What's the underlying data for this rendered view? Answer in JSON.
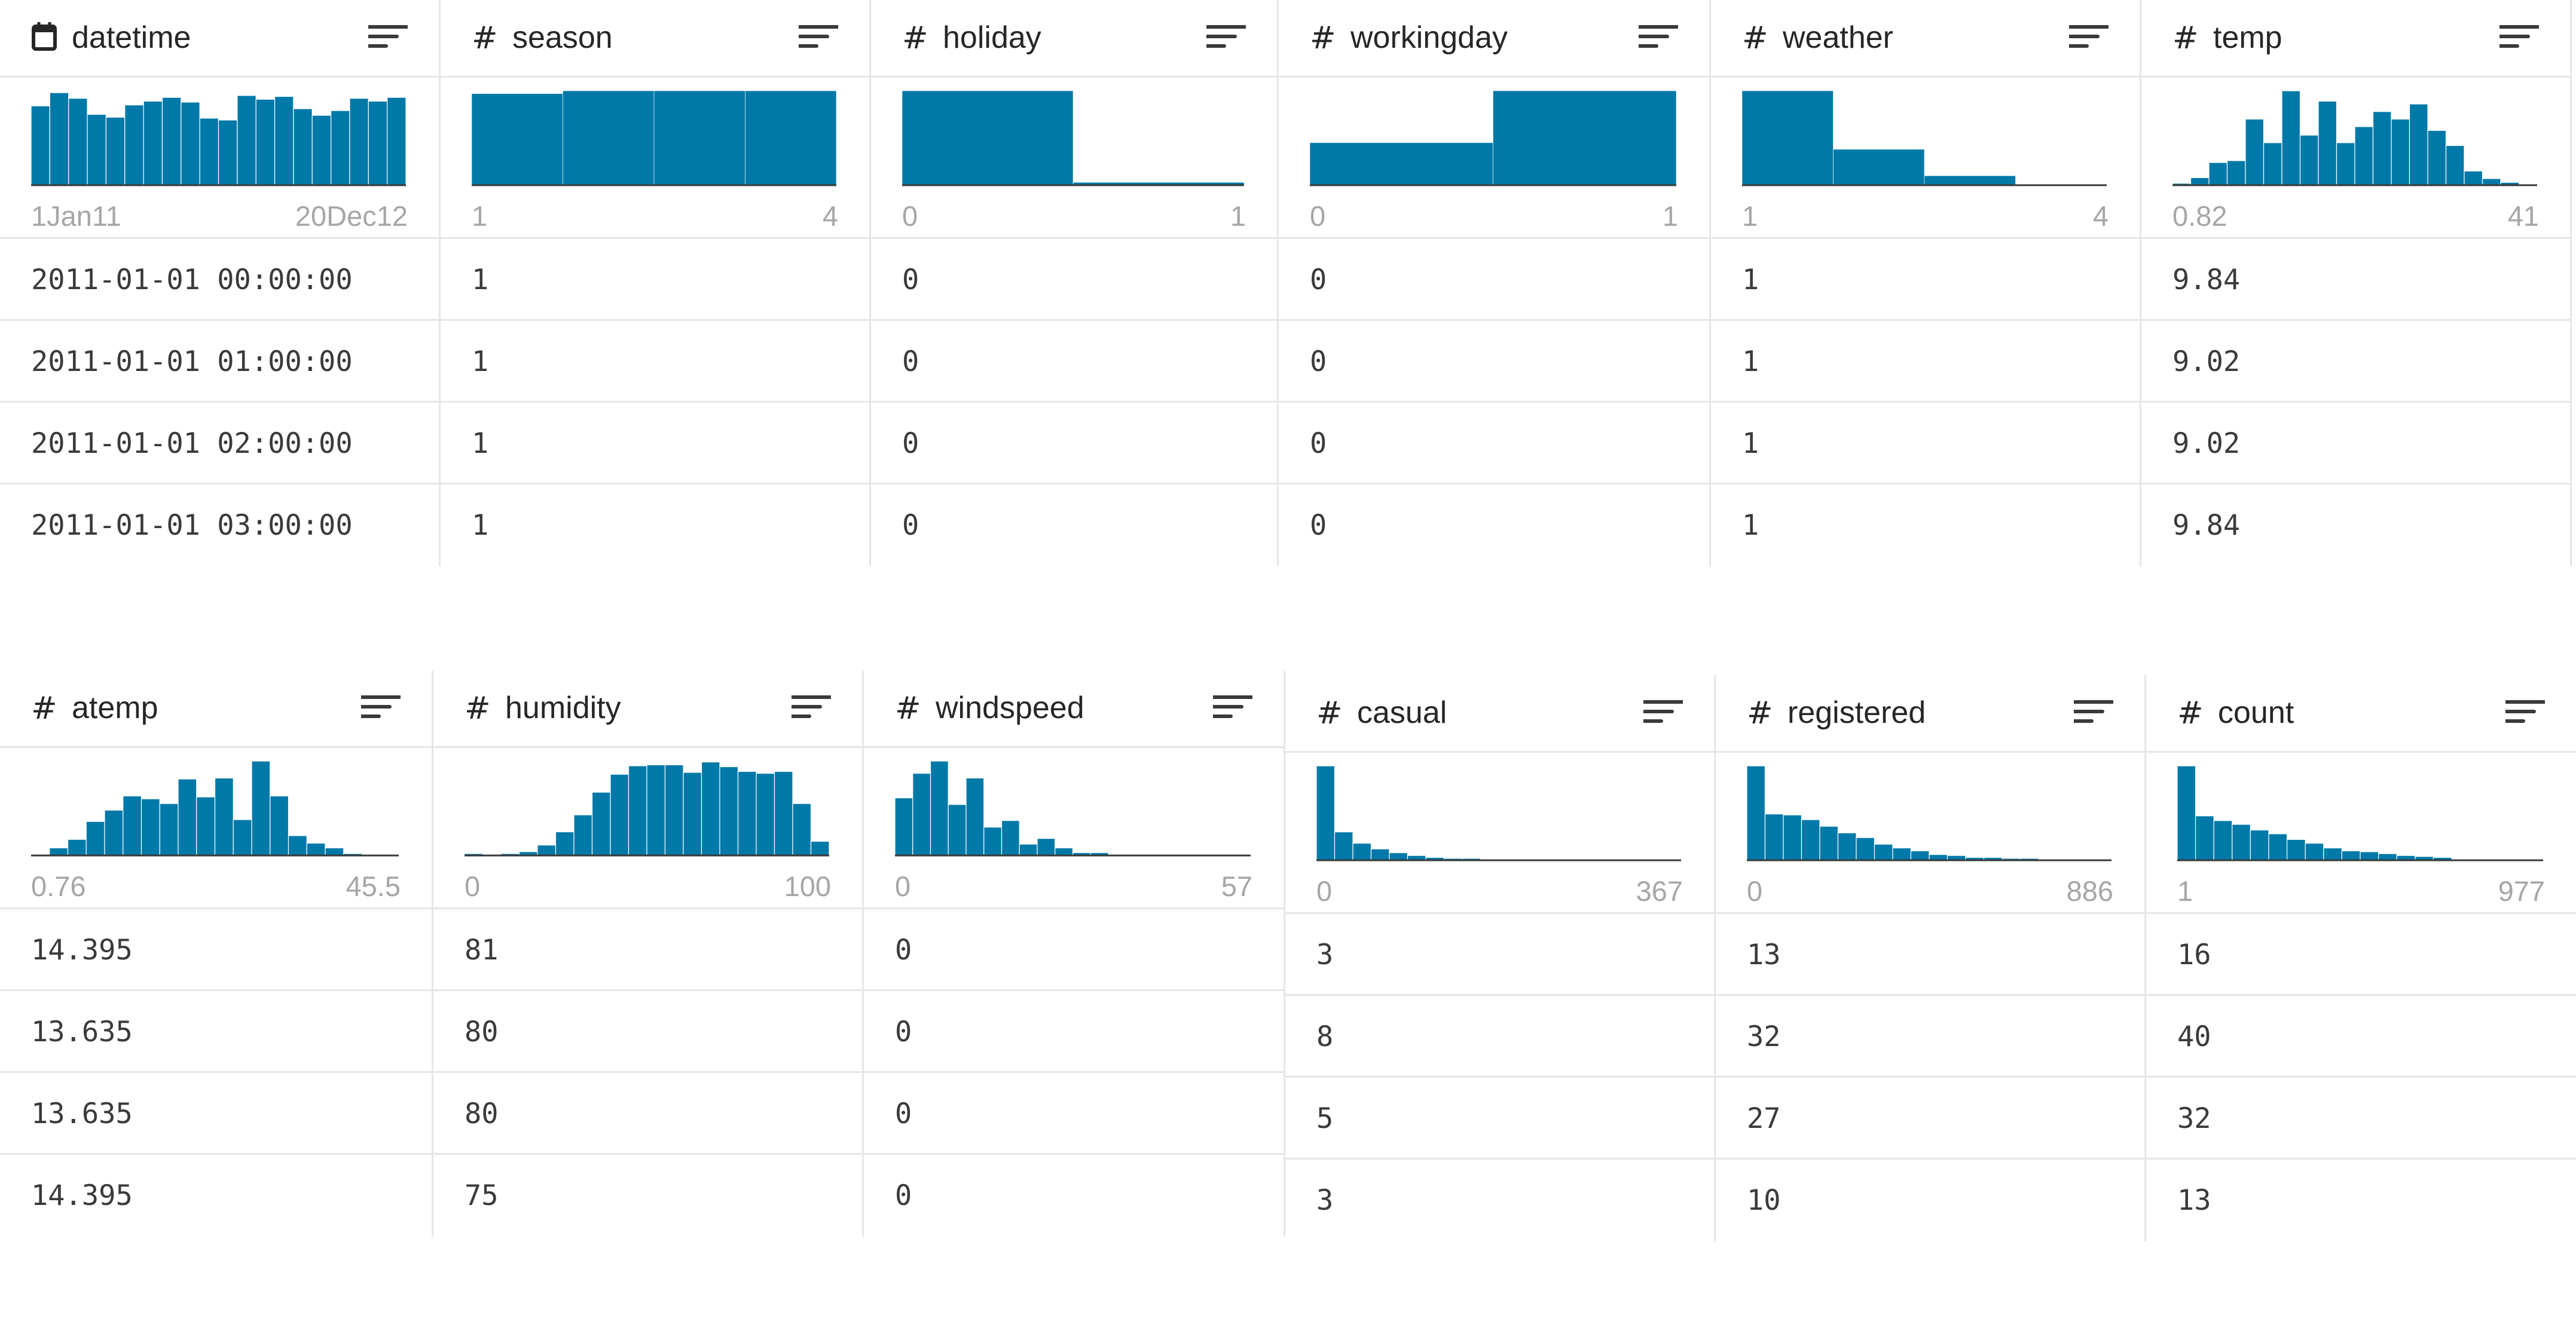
{
  "bar_color": "#0079a8",
  "columns": [
    {
      "name": "datetime",
      "type_icon": "calendar-icon",
      "range_min": "1Jan11",
      "range_max": "20Dec12",
      "values": [
        "2011-01-01 00:00:00",
        "2011-01-01 01:00:00",
        "2011-01-01 02:00:00",
        "2011-01-01 03:00:00"
      ]
    },
    {
      "name": "season",
      "type_icon": "hash-icon",
      "range_min": "1",
      "range_max": "4",
      "values": [
        "1",
        "1",
        "1",
        "1"
      ]
    },
    {
      "name": "holiday",
      "type_icon": "hash-icon",
      "range_min": "0",
      "range_max": "1",
      "values": [
        "0",
        "0",
        "0",
        "0"
      ]
    },
    {
      "name": "workingday",
      "type_icon": "hash-icon",
      "range_min": "0",
      "range_max": "1",
      "values": [
        "0",
        "0",
        "0",
        "0"
      ]
    },
    {
      "name": "weather",
      "type_icon": "hash-icon",
      "range_min": "1",
      "range_max": "4",
      "values": [
        "1",
        "1",
        "1",
        "1"
      ]
    },
    {
      "name": "temp",
      "type_icon": "hash-icon",
      "range_min": "0.82",
      "range_max": "41",
      "values": [
        "9.84",
        "9.02",
        "9.02",
        "9.84"
      ]
    },
    {
      "name": "atemp",
      "type_icon": "hash-icon",
      "range_min": "0.76",
      "range_max": "45.5",
      "values": [
        "14.395",
        "13.635",
        "13.635",
        "14.395"
      ]
    },
    {
      "name": "humidity",
      "type_icon": "hash-icon",
      "range_min": "0",
      "range_max": "100",
      "values": [
        "81",
        "80",
        "80",
        "75"
      ]
    },
    {
      "name": "windspeed",
      "type_icon": "hash-icon",
      "range_min": "0",
      "range_max": "57",
      "values": [
        "0",
        "0",
        "0",
        "0"
      ]
    },
    {
      "name": "casual",
      "type_icon": "hash-icon",
      "range_min": "0",
      "range_max": "367",
      "values": [
        "3",
        "8",
        "5",
        "3"
      ]
    },
    {
      "name": "registered",
      "type_icon": "hash-icon",
      "range_min": "0",
      "range_max": "886",
      "values": [
        "13",
        "32",
        "27",
        "10"
      ]
    },
    {
      "name": "count",
      "type_icon": "hash-icon",
      "range_min": "1",
      "range_max": "977",
      "values": [
        "16",
        "40",
        "32",
        "13"
      ]
    }
  ],
  "chart_data": [
    {
      "type": "bar",
      "column": "datetime",
      "bins": 20,
      "values": [
        0.84,
        0.98,
        0.92,
        0.75,
        0.72,
        0.85,
        0.89,
        0.93,
        0.88,
        0.71,
        0.69,
        0.95,
        0.91,
        0.94,
        0.81,
        0.74,
        0.79,
        0.92,
        0.89,
        0.93
      ]
    },
    {
      "type": "bar",
      "column": "season",
      "bins": 4,
      "values": [
        0.97,
        1.0,
        1.0,
        1.0
      ]
    },
    {
      "type": "bar",
      "column": "holiday",
      "bins": 2,
      "values": [
        1.0,
        0.03
      ]
    },
    {
      "type": "bar",
      "column": "workingday",
      "bins": 2,
      "values": [
        0.45,
        1.0
      ]
    },
    {
      "type": "bar",
      "column": "weather",
      "bins": 4,
      "values": [
        1.0,
        0.38,
        0.1,
        0.0
      ]
    },
    {
      "type": "bar",
      "column": "temp",
      "bins": 20,
      "values": [
        0.02,
        0.08,
        0.24,
        0.26,
        0.7,
        0.45,
        1.0,
        0.53,
        0.89,
        0.45,
        0.62,
        0.78,
        0.7,
        0.86,
        0.58,
        0.42,
        0.15,
        0.07,
        0.03,
        0.0
      ]
    },
    {
      "type": "bar",
      "column": "atemp",
      "bins": 20,
      "values": [
        0.01,
        0.08,
        0.17,
        0.36,
        0.48,
        0.63,
        0.6,
        0.55,
        0.81,
        0.62,
        0.82,
        0.38,
        1.0,
        0.63,
        0.21,
        0.13,
        0.08,
        0.02,
        0.0,
        0.0
      ]
    },
    {
      "type": "bar",
      "column": "humidity",
      "bins": 20,
      "values": [
        0.02,
        0.01,
        0.02,
        0.04,
        0.11,
        0.25,
        0.43,
        0.67,
        0.86,
        0.95,
        0.96,
        0.96,
        0.88,
        0.99,
        0.94,
        0.89,
        0.87,
        0.89,
        0.55,
        0.15
      ]
    },
    {
      "type": "bar",
      "column": "windspeed",
      "bins": 20,
      "values": [
        0.61,
        0.87,
        1.0,
        0.54,
        0.82,
        0.3,
        0.37,
        0.12,
        0.18,
        0.08,
        0.03,
        0.03,
        0.01,
        0.01,
        0.0,
        0.0,
        0.0,
        0.0,
        0.0,
        0.0
      ]
    },
    {
      "type": "bar",
      "column": "casual",
      "bins": 20,
      "values": [
        1.0,
        0.3,
        0.18,
        0.12,
        0.08,
        0.05,
        0.03,
        0.02,
        0.02,
        0.01,
        0.01,
        0.01,
        0.0,
        0.0,
        0.0,
        0.0,
        0.0,
        0.0,
        0.0,
        0.0
      ]
    },
    {
      "type": "bar",
      "column": "registered",
      "bins": 20,
      "values": [
        1.0,
        0.49,
        0.48,
        0.43,
        0.36,
        0.29,
        0.24,
        0.17,
        0.13,
        0.1,
        0.06,
        0.05,
        0.03,
        0.03,
        0.02,
        0.02,
        0.01,
        0.01,
        0.01,
        0.0
      ]
    },
    {
      "type": "bar",
      "column": "count",
      "bins": 20,
      "values": [
        1.0,
        0.47,
        0.42,
        0.38,
        0.32,
        0.28,
        0.22,
        0.18,
        0.13,
        0.1,
        0.09,
        0.07,
        0.05,
        0.04,
        0.03,
        0.01,
        0.01,
        0.01,
        0.0,
        0.0
      ]
    }
  ]
}
